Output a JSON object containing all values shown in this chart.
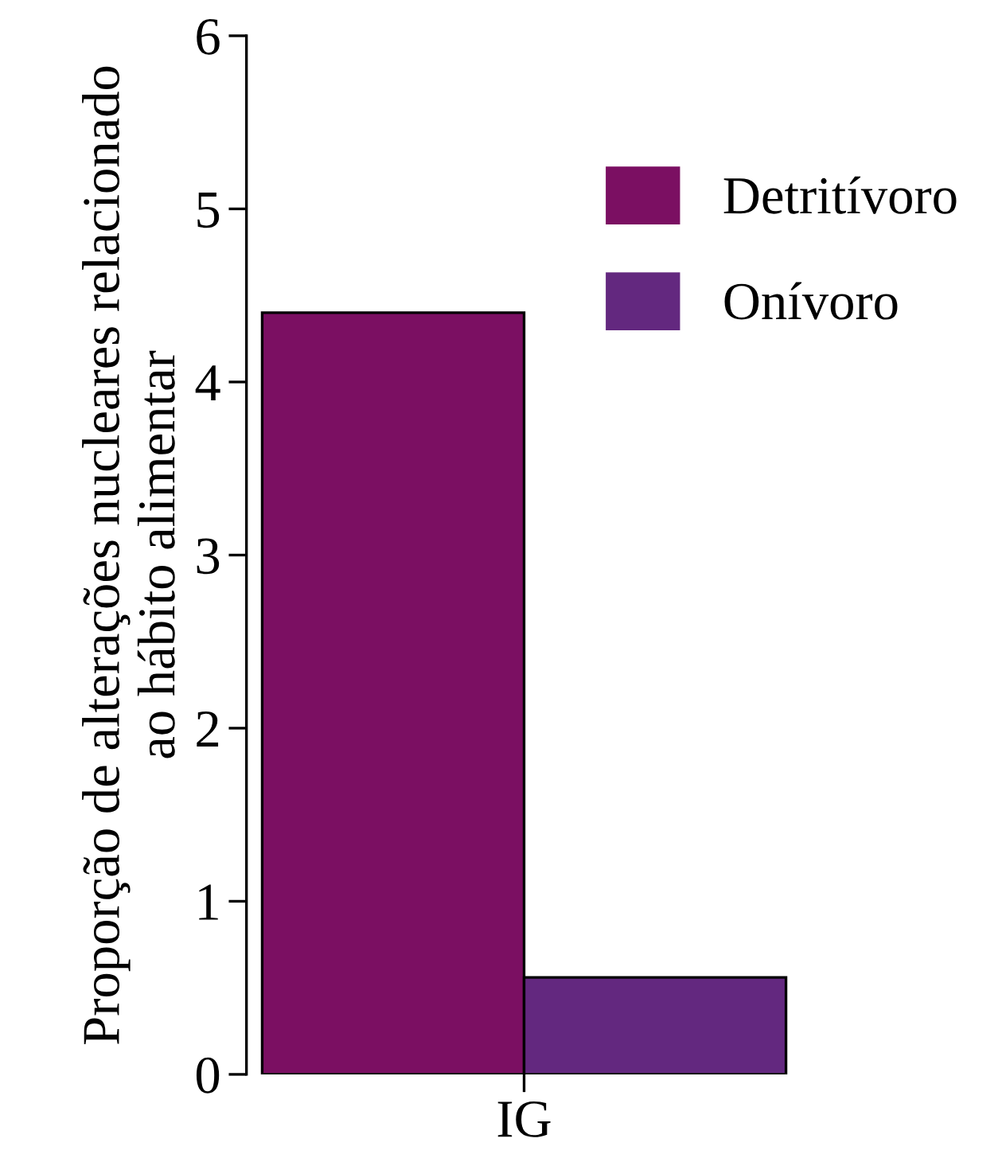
{
  "chart_data": {
    "type": "bar",
    "ylabel": "Proporção de alterações nucleares relacionado\nao hábito alimentar",
    "categories": [
      "IG"
    ],
    "series": [
      {
        "name": "Detritívoro",
        "color": "#7b0f62",
        "values": [
          4.4
        ]
      },
      {
        "name": "Onívoro",
        "color": "#63287f",
        "values": [
          0.56
        ]
      }
    ],
    "ylim": [
      0,
      6
    ],
    "yticks": [
      0,
      1,
      2,
      3,
      4,
      5,
      6
    ],
    "grid": false,
    "legend": "top right"
  }
}
